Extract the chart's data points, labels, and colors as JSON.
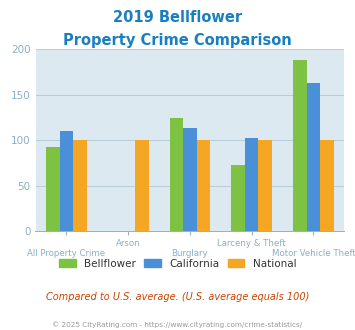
{
  "title_line1": "2019 Bellflower",
  "title_line2": "Property Crime Comparison",
  "title_color": "#1a7fc1",
  "categories": [
    "All Property Crime",
    "Arson",
    "Burglary",
    "Larceny & Theft",
    "Motor Vehicle Theft"
  ],
  "series": {
    "Bellflower": [
      93,
      0,
      125,
      73,
      188
    ],
    "California": [
      110,
      0,
      113,
      103,
      163
    ],
    "National": [
      100,
      100,
      100,
      100,
      100
    ]
  },
  "colors": {
    "Bellflower": "#7dc242",
    "California": "#4a90d9",
    "National": "#f5a623"
  },
  "ylim": [
    0,
    200
  ],
  "yticks": [
    0,
    50,
    100,
    150,
    200
  ],
  "plot_bg_color": "#dce9f0",
  "fig_bg_color": "#ffffff",
  "grid_color": "#b8cdd8",
  "subtitle_text": "Compared to U.S. average. (U.S. average equals 100)",
  "subtitle_color": "#cc4400",
  "footer_text": "© 2025 CityRating.com - https://www.cityrating.com/crime-statistics/",
  "footer_color": "#999999",
  "tick_label_color": "#8aafc5",
  "bar_width": 0.22
}
